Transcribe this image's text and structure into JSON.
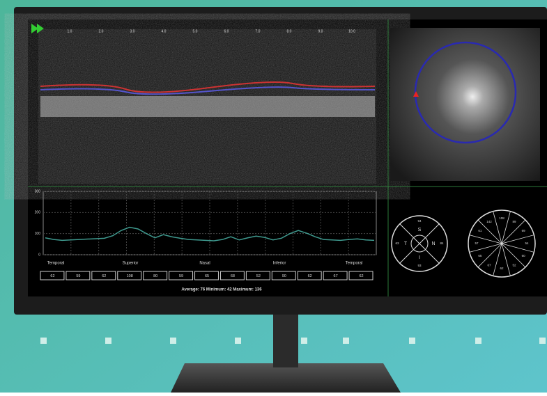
{
  "scan": {
    "scale_labels": [
      "1.0",
      "2.0",
      "3.0",
      "4.0",
      "5.0",
      "6.0",
      "7.0",
      "8.0",
      "9.0",
      "10.0"
    ]
  },
  "chart_data": {
    "type": "line",
    "color": "#3f9a8f",
    "values": [
      80,
      72,
      68,
      70,
      72,
      74,
      76,
      78,
      90,
      115,
      130,
      122,
      100,
      80,
      95,
      85,
      78,
      72,
      70,
      68,
      66,
      72,
      85,
      70,
      80,
      88,
      82,
      70,
      78,
      100,
      115,
      102,
      85,
      72,
      70,
      68,
      72,
      75,
      70,
      68
    ],
    "ylim": [
      0,
      300
    ],
    "yticks": [
      0,
      100,
      200,
      300
    ],
    "grid": true,
    "sector_labels": [
      "Temporal",
      "Superior",
      "Nasal",
      "Inferior",
      "Temporal"
    ]
  },
  "sector_values": [
    "62",
    "59",
    "62",
    "108",
    "80",
    "59",
    "65",
    "68",
    "52",
    "90",
    "62",
    "67",
    "62"
  ],
  "summary": "Average: 76  Minimum: 42  Maximum: 136",
  "quadrant": {
    "labels": [
      "S",
      "T",
      "N",
      "I"
    ],
    "values": [
      "94",
      "63",
      "84",
      "93"
    ]
  },
  "clock": {
    "values": [
      "108",
      "89",
      "69",
      "54",
      "60",
      "52",
      "62",
      "67",
      "65",
      "57",
      "61",
      "142"
    ]
  }
}
